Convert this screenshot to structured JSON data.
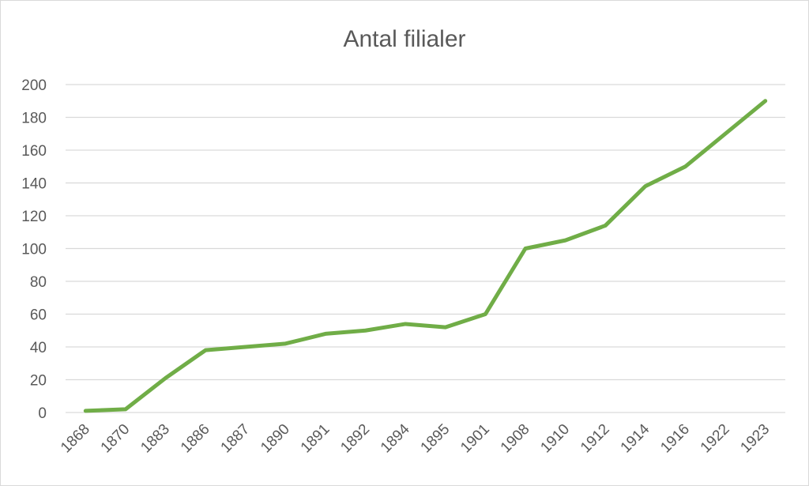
{
  "chart_data": {
    "type": "line",
    "title": "Antal filialer",
    "xlabel": "",
    "ylabel": "",
    "categories": [
      "1868",
      "1870",
      "1883",
      "1886",
      "1887",
      "1890",
      "1891",
      "1892",
      "1894",
      "1895",
      "1901",
      "1908",
      "1910",
      "1912",
      "1914",
      "1916",
      "1922",
      "1923"
    ],
    "series": [
      {
        "values": [
          1,
          2,
          21,
          38,
          40,
          42,
          48,
          50,
          54,
          52,
          60,
          100,
          105,
          114,
          138,
          150,
          170,
          190
        ]
      }
    ],
    "ylim": [
      0,
      200
    ],
    "yticks": [
      "0",
      "20",
      "40",
      "60",
      "80",
      "100",
      "120",
      "140",
      "160",
      "180",
      "200"
    ],
    "grid": true,
    "legend": "none",
    "line_color": "#70ad47"
  }
}
